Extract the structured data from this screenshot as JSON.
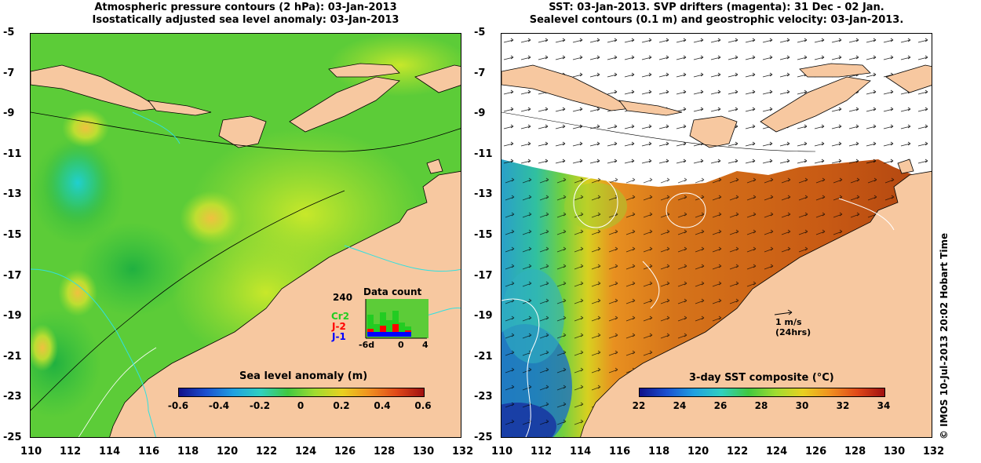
{
  "left_panel": {
    "title_line1": "Atmospheric pressure contours (2 hPa): 03-Jan-2013",
    "title_line2": "Isostatically adjusted sea level anomaly: 03-Jan-2013",
    "colorbar": {
      "label": "Sea level anomaly (m)",
      "ticks": [
        "-0.6",
        "-0.4",
        "-0.2",
        "0",
        "0.2",
        "0.4",
        "0.6"
      ]
    },
    "data_count": {
      "title": "Data count",
      "max_label": "240",
      "series": [
        {
          "label": "Cr2",
          "color": "#22cc22"
        },
        {
          "label": "J-2",
          "color": "#ff0000"
        },
        {
          "label": "J-1",
          "color": "#0000ff"
        }
      ],
      "x_start": "-6d",
      "x_mid": "0",
      "x_end": "4"
    }
  },
  "right_panel": {
    "title_line1": "SST: 03-Jan-2013. SVP drifters (magenta): 31 Dec - 02 Jan.",
    "title_line2": "Sealevel contours (0.1 m) and geostrophic velocity: 03-Jan-2013.",
    "colorbar": {
      "label": "3-day SST composite (°C)",
      "ticks": [
        "22",
        "24",
        "26",
        "28",
        "30",
        "32",
        "34"
      ]
    },
    "velocity_scale": {
      "line1": "1 m/s",
      "line2": "(24hrs)"
    }
  },
  "y_ticks": [
    "-5",
    "-7",
    "-9",
    "-11",
    "-13",
    "-15",
    "-17",
    "-19",
    "-21",
    "-23",
    "-25"
  ],
  "x_ticks": [
    "110",
    "112",
    "114",
    "116",
    "118",
    "120",
    "122",
    "124",
    "126",
    "128",
    "130",
    "132"
  ],
  "credit": "© IMOS 10-Jul-2013 20:02 Hobart Time",
  "colors": {
    "land": "#f7c8a0",
    "ocean_left": "#6ad63a",
    "ocean_right_warm": "#d9741c"
  }
}
